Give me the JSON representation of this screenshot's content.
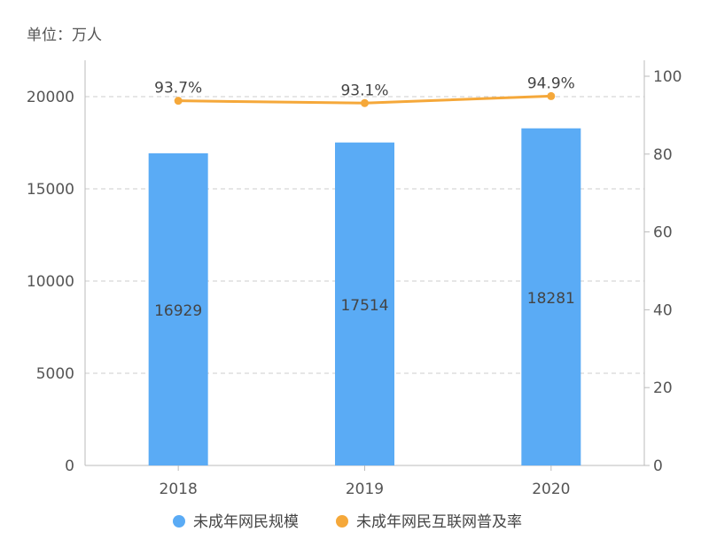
{
  "chart_data": {
    "type": "bar",
    "unit_label": "单位：万人",
    "categories": [
      "2018",
      "2019",
      "2020"
    ],
    "series": [
      {
        "name": "未成年网民规模",
        "type": "bar",
        "axis": "left",
        "color": "#5aabf5",
        "values": [
          16929,
          17514,
          18281
        ],
        "labels": [
          "16929",
          "17514",
          "18281"
        ]
      },
      {
        "name": "未成年网民互联网普及率",
        "type": "line",
        "axis": "right",
        "color": "#f5a83a",
        "values": [
          93.7,
          93.1,
          94.9
        ],
        "labels": [
          "93.7%",
          "93.1%",
          "94.9%"
        ]
      }
    ],
    "left_axis": {
      "ylim": [
        0,
        20000
      ],
      "ticks": [
        0,
        5000,
        10000,
        15000,
        20000
      ]
    },
    "right_axis": {
      "ylim": [
        0,
        100
      ],
      "ticks": [
        0,
        20,
        40,
        60,
        80,
        100
      ]
    },
    "grid": true,
    "legend_position": "bottom"
  }
}
